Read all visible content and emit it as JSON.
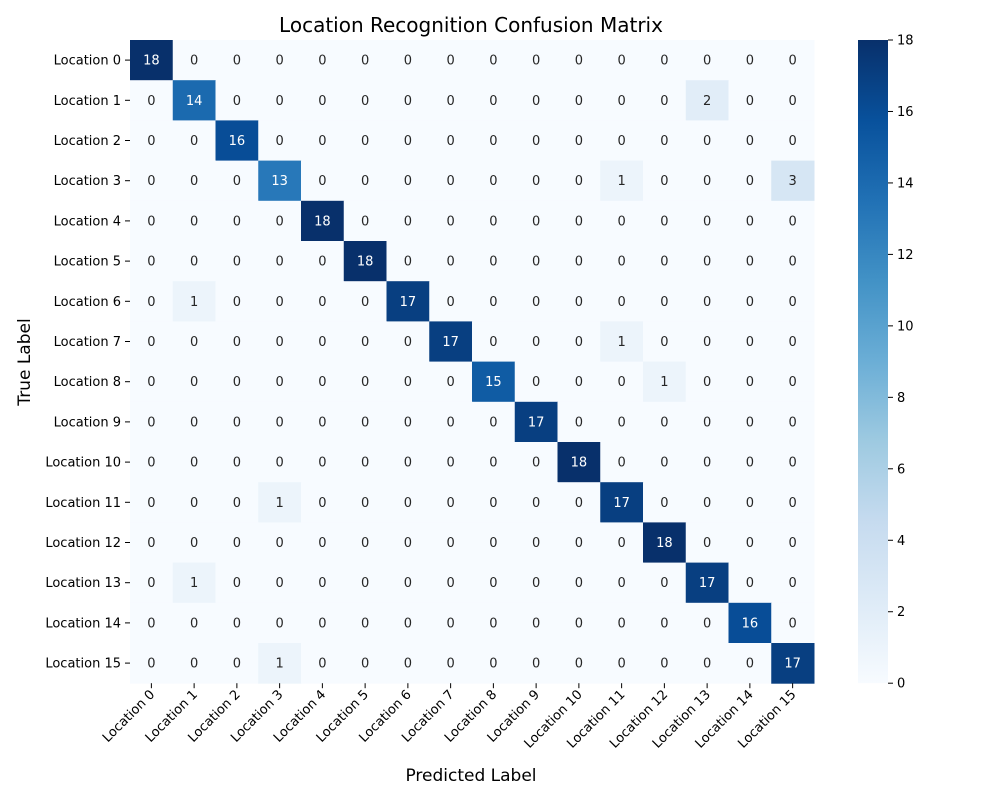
{
  "chart_data": {
    "type": "heatmap",
    "title": "Location Recognition Confusion Matrix",
    "xlabel": "Predicted Label",
    "ylabel": "True Label",
    "x_categories": [
      "Location 0",
      "Location 1",
      "Location 2",
      "Location 3",
      "Location 4",
      "Location 5",
      "Location 6",
      "Location 7",
      "Location 8",
      "Location 9",
      "Location 10",
      "Location 11",
      "Location 12",
      "Location 13",
      "Location 14",
      "Location 15"
    ],
    "y_categories": [
      "Location 0",
      "Location 1",
      "Location 2",
      "Location 3",
      "Location 4",
      "Location 5",
      "Location 6",
      "Location 7",
      "Location 8",
      "Location 9",
      "Location 10",
      "Location 11",
      "Location 12",
      "Location 13",
      "Location 14",
      "Location 15"
    ],
    "values": [
      [
        18,
        0,
        0,
        0,
        0,
        0,
        0,
        0,
        0,
        0,
        0,
        0,
        0,
        0,
        0,
        0
      ],
      [
        0,
        14,
        0,
        0,
        0,
        0,
        0,
        0,
        0,
        0,
        0,
        0,
        0,
        2,
        0,
        0
      ],
      [
        0,
        0,
        16,
        0,
        0,
        0,
        0,
        0,
        0,
        0,
        0,
        0,
        0,
        0,
        0,
        0
      ],
      [
        0,
        0,
        0,
        13,
        0,
        0,
        0,
        0,
        0,
        0,
        0,
        1,
        0,
        0,
        0,
        3
      ],
      [
        0,
        0,
        0,
        0,
        18,
        0,
        0,
        0,
        0,
        0,
        0,
        0,
        0,
        0,
        0,
        0
      ],
      [
        0,
        0,
        0,
        0,
        0,
        18,
        0,
        0,
        0,
        0,
        0,
        0,
        0,
        0,
        0,
        0
      ],
      [
        0,
        1,
        0,
        0,
        0,
        0,
        17,
        0,
        0,
        0,
        0,
        0,
        0,
        0,
        0,
        0
      ],
      [
        0,
        0,
        0,
        0,
        0,
        0,
        0,
        17,
        0,
        0,
        0,
        1,
        0,
        0,
        0,
        0
      ],
      [
        0,
        0,
        0,
        0,
        0,
        0,
        0,
        0,
        15,
        0,
        0,
        0,
        1,
        0,
        0,
        0
      ],
      [
        0,
        0,
        0,
        0,
        0,
        0,
        0,
        0,
        0,
        17,
        0,
        0,
        0,
        0,
        0,
        0
      ],
      [
        0,
        0,
        0,
        0,
        0,
        0,
        0,
        0,
        0,
        0,
        18,
        0,
        0,
        0,
        0,
        0
      ],
      [
        0,
        0,
        0,
        1,
        0,
        0,
        0,
        0,
        0,
        0,
        0,
        17,
        0,
        0,
        0,
        0
      ],
      [
        0,
        0,
        0,
        0,
        0,
        0,
        0,
        0,
        0,
        0,
        0,
        0,
        18,
        0,
        0,
        0
      ],
      [
        0,
        1,
        0,
        0,
        0,
        0,
        0,
        0,
        0,
        0,
        0,
        0,
        0,
        17,
        0,
        0
      ],
      [
        0,
        0,
        0,
        0,
        0,
        0,
        0,
        0,
        0,
        0,
        0,
        0,
        0,
        0,
        16,
        0
      ],
      [
        0,
        0,
        0,
        1,
        0,
        0,
        0,
        0,
        0,
        0,
        0,
        0,
        0,
        0,
        0,
        17
      ]
    ],
    "colorbar": {
      "min": 0,
      "max": 18,
      "ticks": [
        0,
        2,
        4,
        6,
        8,
        10,
        12,
        14,
        16,
        18
      ]
    },
    "colormap": [
      "#f7fbff",
      "#deebf7",
      "#c6dbef",
      "#9ecae1",
      "#6baed6",
      "#4292c6",
      "#2171b5",
      "#08519c",
      "#08306b"
    ],
    "annotation_color_light": "#ffffff",
    "annotation_color_dark": "#262626"
  }
}
